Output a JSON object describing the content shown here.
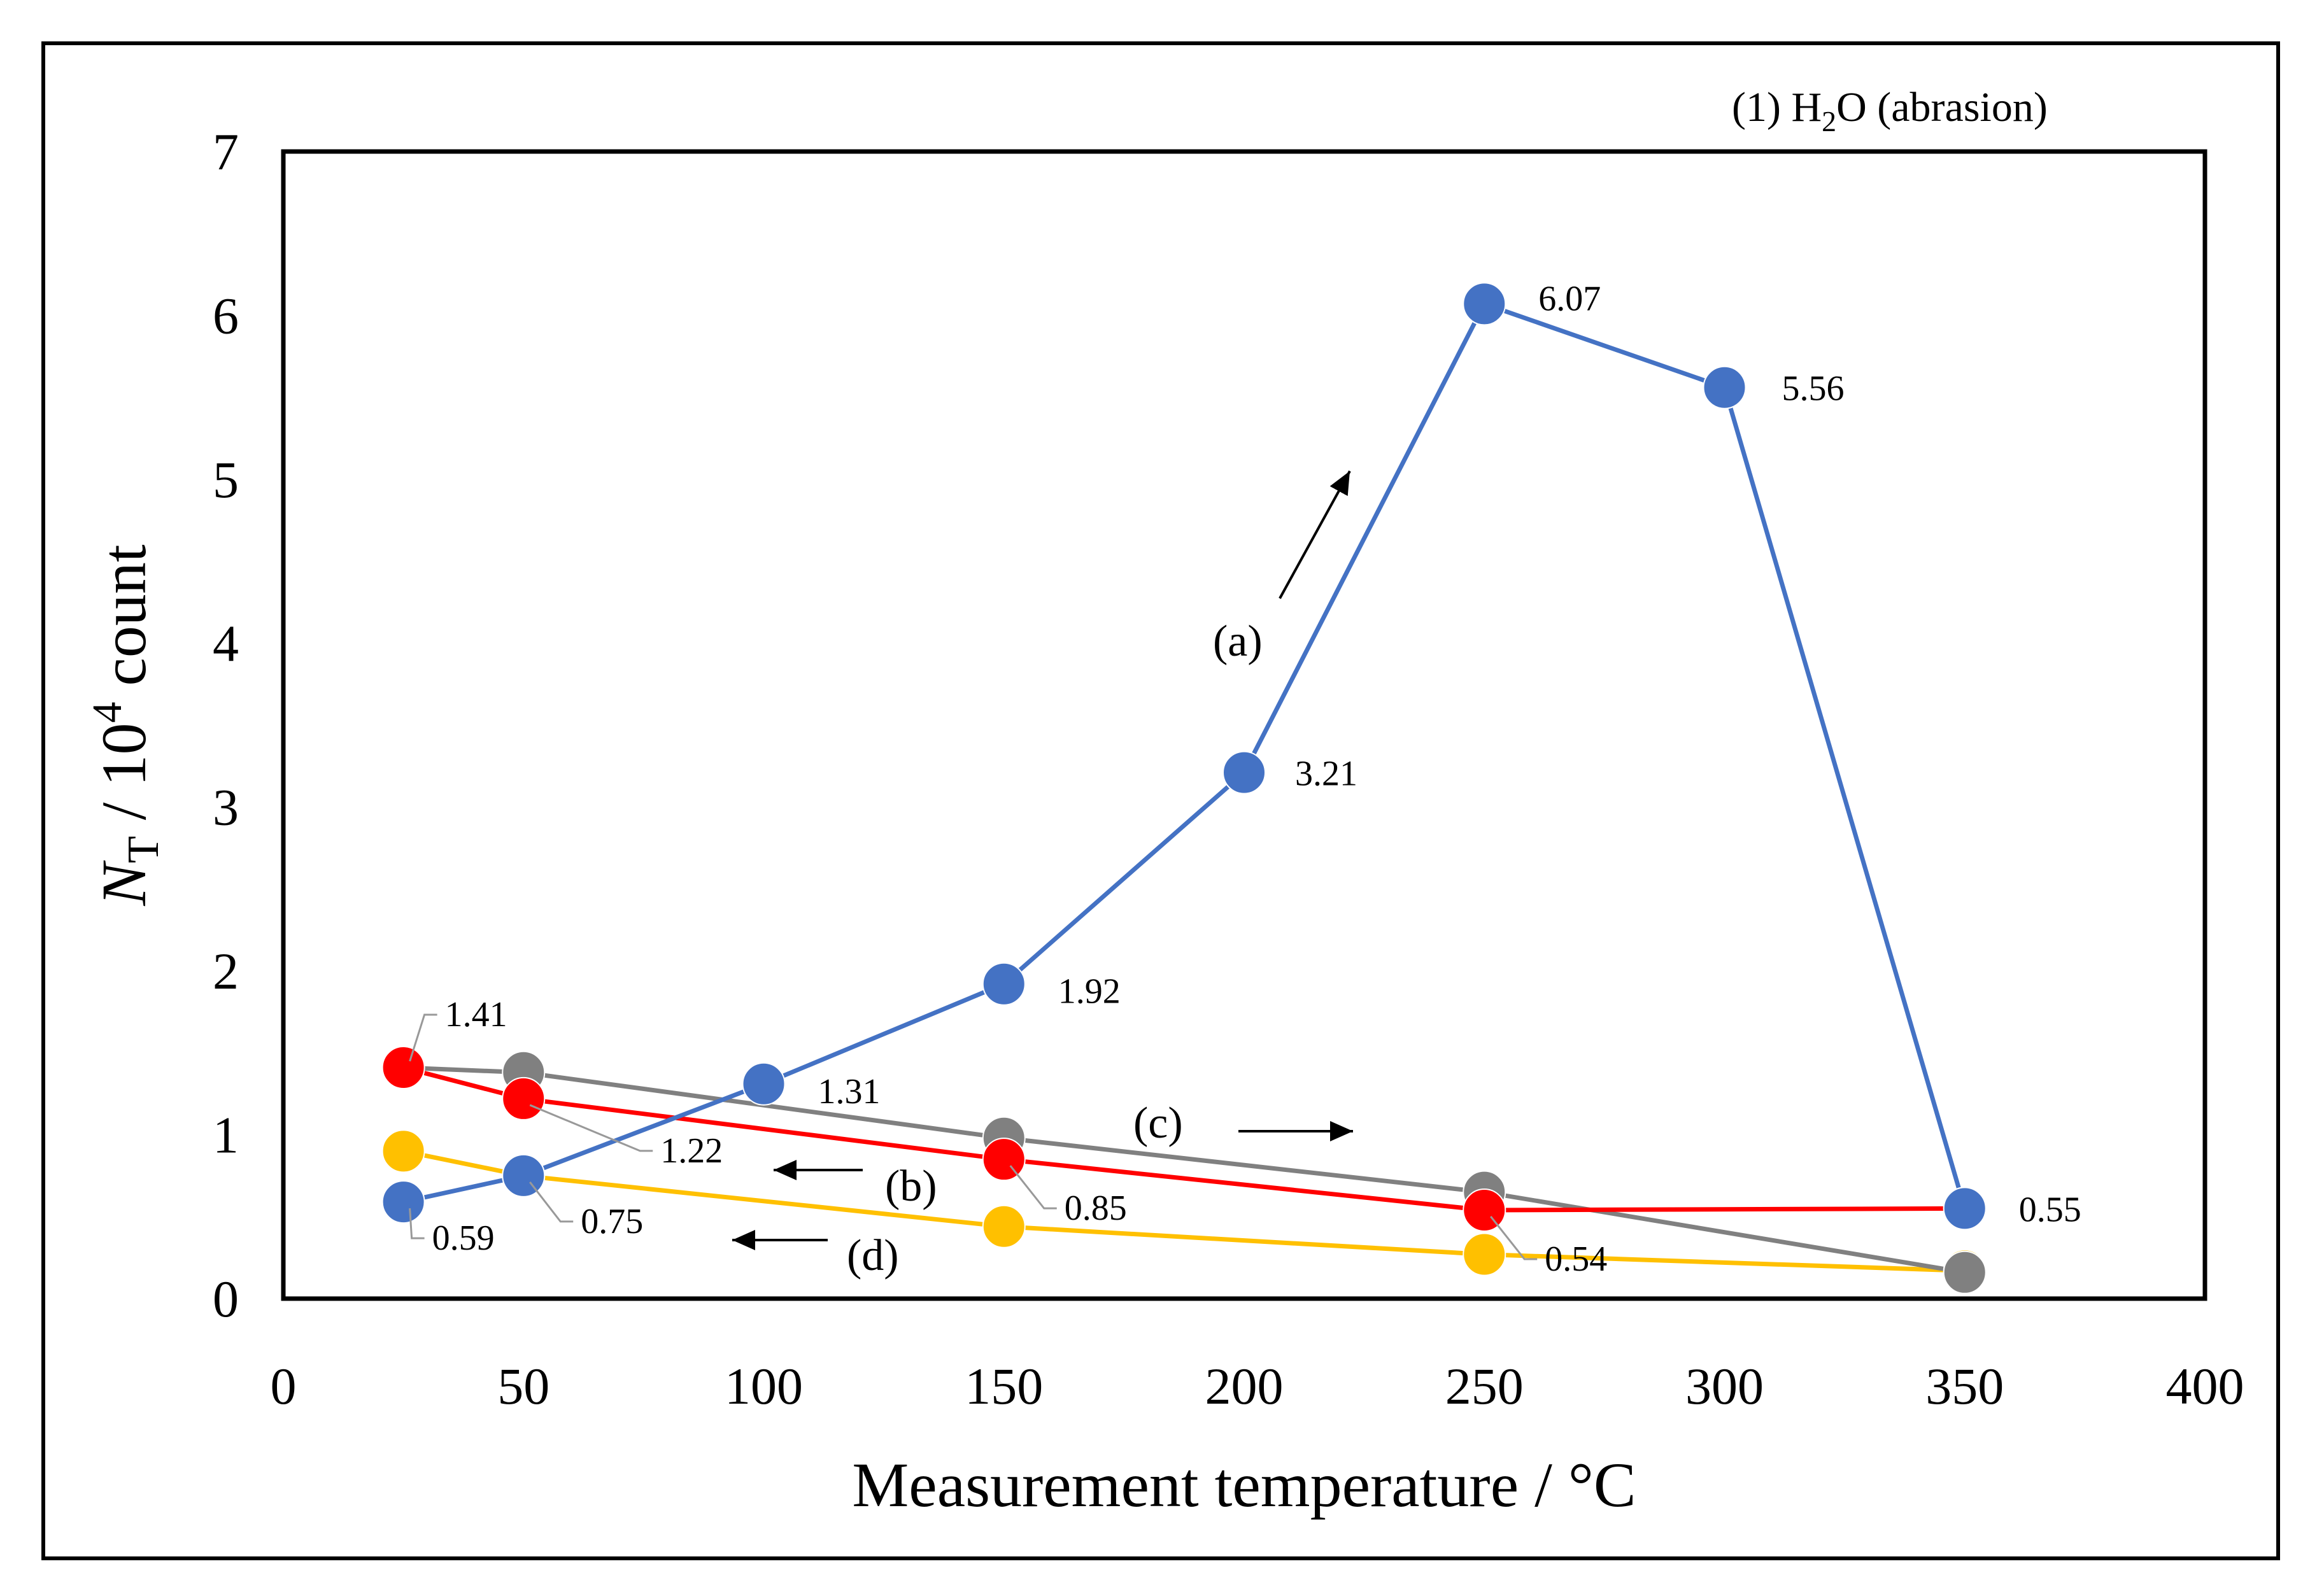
{
  "chart_data": {
    "type": "line",
    "title": "(1) H",
    "title_sub": "2",
    "title_rest": "O (abrasion)",
    "xlabel": "Measurement temperature / °C",
    "ylabel_main": "N",
    "ylabel_sub": "T",
    "ylabel_rest": " / 10",
    "ylabel_sup": "4",
    "ylabel_end": " count",
    "xlim": [
      0,
      400
    ],
    "ylim": [
      0,
      7
    ],
    "x_ticks": [
      "0",
      "50",
      "100",
      "150",
      "200",
      "250",
      "300",
      "350",
      "400"
    ],
    "y_ticks": [
      "0",
      "1",
      "2",
      "3",
      "4",
      "5",
      "6",
      "7"
    ],
    "grid": false,
    "series": [
      {
        "name": "(a)",
        "color": "#4472C4",
        "x": [
          25,
          50,
          100,
          150,
          200,
          250,
          300,
          350
        ],
        "values": [
          0.59,
          0.75,
          1.31,
          1.92,
          3.21,
          6.07,
          5.56,
          0.55
        ],
        "labels": [
          "0.59",
          "",
          "1.31",
          "1.92",
          "3.21",
          "6.07",
          "5.56",
          ""
        ]
      },
      {
        "name": "(b)",
        "color": "#FF0000",
        "x": [
          25,
          50,
          150,
          250,
          350
        ],
        "values": [
          1.41,
          1.22,
          0.85,
          0.54,
          0.55
        ],
        "labels": [
          "",
          "1.22",
          "0.85",
          "0.54",
          "0.55"
        ]
      },
      {
        "name": "(c)",
        "color": "#808080",
        "x": [
          25,
          50,
          150,
          250,
          350
        ],
        "values": [
          1.41,
          1.38,
          0.98,
          0.65,
          0.16
        ],
        "labels": [
          "1.41",
          "",
          "",
          "",
          ""
        ]
      },
      {
        "name": "(d)",
        "color": "#FFC000",
        "x": [
          25,
          50,
          150,
          250,
          350
        ],
        "values": [
          0.9,
          0.75,
          0.44,
          0.27,
          0.17
        ],
        "labels": [
          "",
          "0.75",
          "",
          "",
          ""
        ]
      }
    ]
  }
}
